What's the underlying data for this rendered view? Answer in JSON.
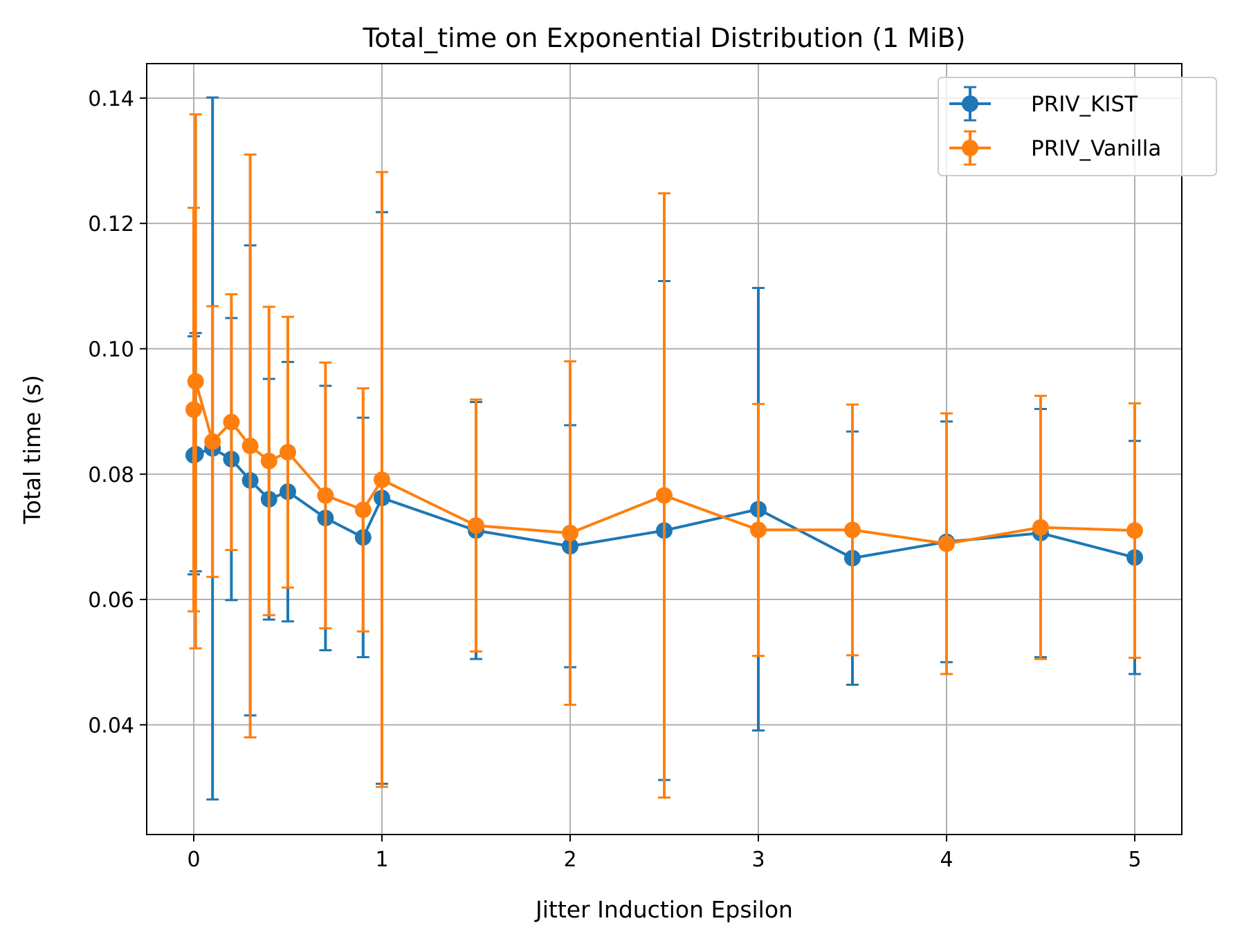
{
  "chart_data": {
    "type": "line",
    "title": "Total_time on Exponential Distribution (1 MiB)",
    "xlabel": "Jitter Induction Epsilon",
    "ylabel": "Total time (s)",
    "xlim": [
      -0.25,
      5.25
    ],
    "ylim": [
      0.0225,
      0.1455
    ],
    "xticks": [
      0,
      1,
      2,
      3,
      4,
      5
    ],
    "xtick_labels": [
      "0",
      "1",
      "2",
      "3",
      "4",
      "5"
    ],
    "yticks": [
      0.04,
      0.06,
      0.08,
      0.1,
      0.12,
      0.14
    ],
    "ytick_labels": [
      "0.04",
      "0.06",
      "0.08",
      "0.10",
      "0.12",
      "0.14"
    ],
    "grid": true,
    "legend_position": "top-right",
    "series": [
      {
        "name": "PRIV_KIST",
        "color": "#1f77b4",
        "points": [
          {
            "x": 0.0,
            "y": 0.083,
            "lo": 0.064,
            "hi": 0.102
          },
          {
            "x": 0.01,
            "y": 0.0832,
            "lo": 0.0645,
            "hi": 0.1025
          },
          {
            "x": 0.1,
            "y": 0.0841,
            "lo": 0.0281,
            "hi": 0.1401
          },
          {
            "x": 0.2,
            "y": 0.0824,
            "lo": 0.0599,
            "hi": 0.1049
          },
          {
            "x": 0.3,
            "y": 0.079,
            "lo": 0.0415,
            "hi": 0.1165
          },
          {
            "x": 0.4,
            "y": 0.076,
            "lo": 0.0568,
            "hi": 0.0952
          },
          {
            "x": 0.5,
            "y": 0.0772,
            "lo": 0.0565,
            "hi": 0.0979
          },
          {
            "x": 0.7,
            "y": 0.073,
            "lo": 0.0519,
            "hi": 0.0941
          },
          {
            "x": 0.9,
            "y": 0.0699,
            "lo": 0.0508,
            "hi": 0.089
          },
          {
            "x": 1.0,
            "y": 0.0762,
            "lo": 0.0306,
            "hi": 0.1218
          },
          {
            "x": 1.5,
            "y": 0.071,
            "lo": 0.0505,
            "hi": 0.0915
          },
          {
            "x": 2.0,
            "y": 0.0685,
            "lo": 0.0492,
            "hi": 0.0878
          },
          {
            "x": 2.5,
            "y": 0.071,
            "lo": 0.0312,
            "hi": 0.1108
          },
          {
            "x": 3.0,
            "y": 0.0744,
            "lo": 0.0391,
            "hi": 0.1097
          },
          {
            "x": 3.5,
            "y": 0.0666,
            "lo": 0.0464,
            "hi": 0.0868
          },
          {
            "x": 4.0,
            "y": 0.0692,
            "lo": 0.05,
            "hi": 0.0884
          },
          {
            "x": 4.5,
            "y": 0.0706,
            "lo": 0.0508,
            "hi": 0.0904
          },
          {
            "x": 5.0,
            "y": 0.0667,
            "lo": 0.0481,
            "hi": 0.0853
          }
        ]
      },
      {
        "name": "PRIV_Vanilla",
        "color": "#ff7f0e",
        "points": [
          {
            "x": 0.0,
            "y": 0.0903,
            "lo": 0.0581,
            "hi": 0.1225
          },
          {
            "x": 0.01,
            "y": 0.0948,
            "lo": 0.0522,
            "hi": 0.1374
          },
          {
            "x": 0.1,
            "y": 0.0852,
            "lo": 0.0636,
            "hi": 0.1068
          },
          {
            "x": 0.2,
            "y": 0.0883,
            "lo": 0.0679,
            "hi": 0.1087
          },
          {
            "x": 0.3,
            "y": 0.0845,
            "lo": 0.038,
            "hi": 0.131
          },
          {
            "x": 0.4,
            "y": 0.0821,
            "lo": 0.0575,
            "hi": 0.1067
          },
          {
            "x": 0.5,
            "y": 0.0835,
            "lo": 0.0619,
            "hi": 0.1051
          },
          {
            "x": 0.7,
            "y": 0.0766,
            "lo": 0.0554,
            "hi": 0.0978
          },
          {
            "x": 0.9,
            "y": 0.0743,
            "lo": 0.0549,
            "hi": 0.0937
          },
          {
            "x": 1.0,
            "y": 0.0791,
            "lo": 0.0301,
            "hi": 0.1282
          },
          {
            "x": 1.5,
            "y": 0.0718,
            "lo": 0.0517,
            "hi": 0.0919
          },
          {
            "x": 2.0,
            "y": 0.0706,
            "lo": 0.0432,
            "hi": 0.098
          },
          {
            "x": 2.5,
            "y": 0.0766,
            "lo": 0.0284,
            "hi": 0.1248
          },
          {
            "x": 3.0,
            "y": 0.0711,
            "lo": 0.051,
            "hi": 0.0912
          },
          {
            "x": 3.5,
            "y": 0.0711,
            "lo": 0.0511,
            "hi": 0.0911
          },
          {
            "x": 4.0,
            "y": 0.0689,
            "lo": 0.0481,
            "hi": 0.0897
          },
          {
            "x": 4.5,
            "y": 0.0715,
            "lo": 0.0505,
            "hi": 0.0925
          },
          {
            "x": 5.0,
            "y": 0.071,
            "lo": 0.0507,
            "hi": 0.0913
          }
        ]
      }
    ]
  }
}
